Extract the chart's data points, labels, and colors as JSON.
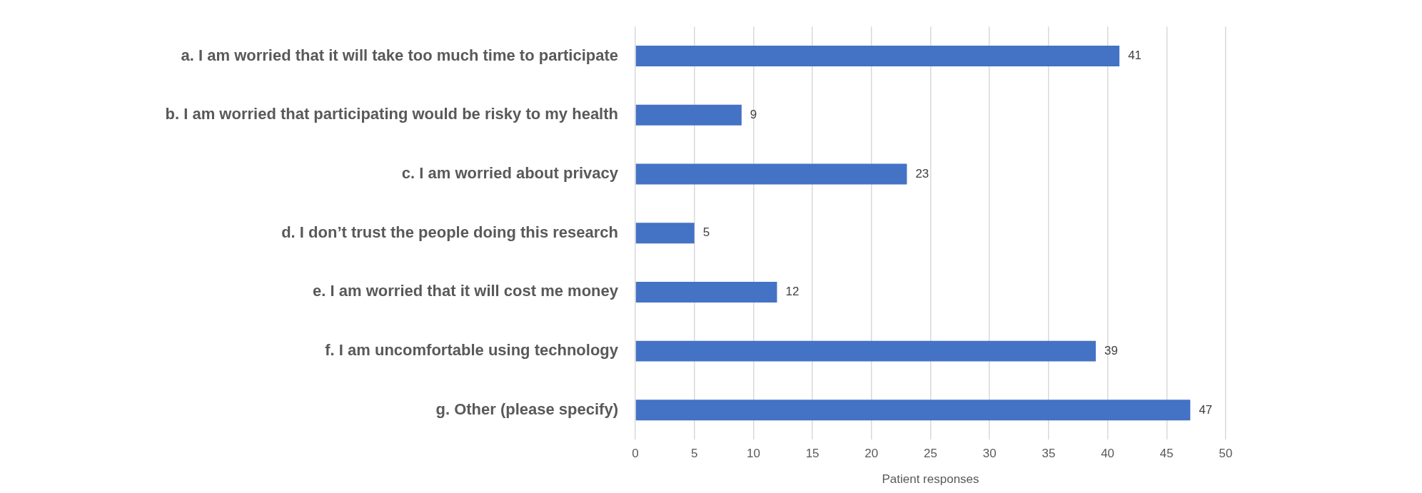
{
  "chart_data": {
    "type": "bar",
    "orientation": "horizontal",
    "xlabel": "Patient responses",
    "categories": [
      "a. I am worried that it will take too much time to participate",
      "b. I am worried that participating would be risky to my health",
      "c. I am worried about privacy",
      "d. I don’t trust the people doing this research",
      "e. I am worried that it will cost me money",
      "f. I am uncomfortable using technology",
      "g. Other (please specify)"
    ],
    "values": [
      41,
      9,
      23,
      5,
      12,
      39,
      47
    ],
    "color": "#4472c4",
    "xlim": [
      0,
      50
    ],
    "xticks": [
      0,
      5,
      10,
      15,
      20,
      25,
      30,
      35,
      40,
      45,
      50
    ],
    "grid": "x",
    "legend": false,
    "data_labels": true
  }
}
